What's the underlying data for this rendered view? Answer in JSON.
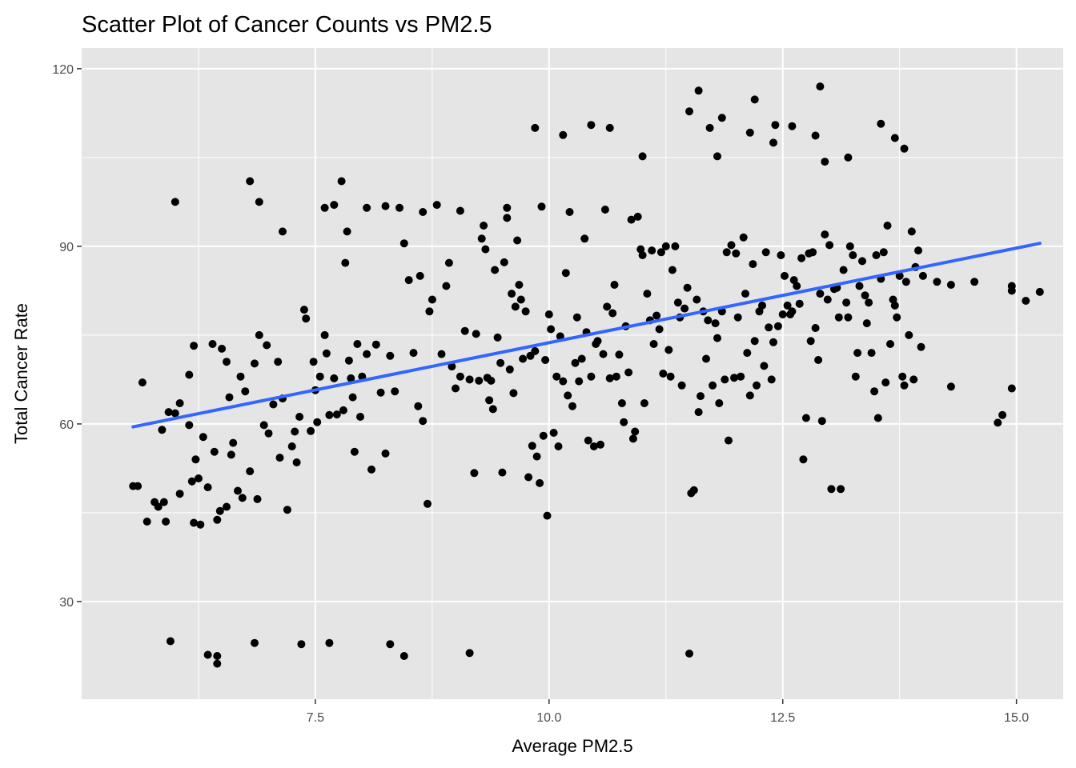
{
  "chart_data": {
    "type": "scatter",
    "title": "Scatter Plot of Cancer Counts vs PM2.5",
    "xlabel": "Average PM2.5",
    "ylabel": "Total Cancer Rate",
    "xlim": [
      5.0,
      15.5
    ],
    "ylim": [
      13.5,
      123.5
    ],
    "x_ticks": [
      7.5,
      10.0,
      12.5,
      15.0
    ],
    "x_tick_labels": [
      "7.5",
      "10.0",
      "12.5",
      "15.0"
    ],
    "x_minor_ticks": [
      6.25,
      8.75,
      11.25,
      13.75
    ],
    "y_ticks": [
      30,
      60,
      90,
      120
    ],
    "y_tick_labels": [
      "30",
      "60",
      "90",
      "120"
    ],
    "y_minor_ticks": [
      45,
      75,
      105
    ],
    "grid": true,
    "point_color": "#000000",
    "panel_background": "#e5e5e5",
    "grid_color": "#ffffff",
    "trend_line": {
      "method": "linear fit",
      "color": "#3366ff",
      "x": [
        5.55,
        15.25
      ],
      "y": [
        59.5,
        90.5
      ]
    },
    "points": [
      [
        5.55,
        49.5
      ],
      [
        5.65,
        67
      ],
      [
        5.7,
        43.5
      ],
      [
        5.78,
        46.8
      ],
      [
        5.82,
        46
      ],
      [
        5.86,
        59
      ],
      [
        5.9,
        43.5
      ],
      [
        5.93,
        62
      ],
      [
        5.88,
        46.8
      ],
      [
        6.05,
        48.2
      ],
      [
        6.15,
        68.3
      ],
      [
        6.18,
        50.3
      ],
      [
        6.2,
        43.3
      ],
      [
        6.22,
        54
      ],
      [
        6.25,
        50.8
      ],
      [
        6.27,
        43
      ],
      [
        6.3,
        57.8
      ],
      [
        6.35,
        49.3
      ],
      [
        6.42,
        55.3
      ],
      [
        6.45,
        43.8
      ],
      [
        6.48,
        45.3
      ],
      [
        6.5,
        72.7
      ],
      [
        6.55,
        46
      ],
      [
        6.58,
        64.5
      ],
      [
        6.62,
        56.8
      ],
      [
        6.6,
        54.8
      ],
      [
        6.67,
        48.7
      ],
      [
        6.72,
        47.5
      ],
      [
        6.75,
        65.5
      ],
      [
        6.8,
        52
      ],
      [
        6.85,
        70.2
      ],
      [
        6.88,
        47.3
      ],
      [
        6.9,
        97.5
      ],
      [
        6.95,
        59.8
      ],
      [
        6.98,
        73.3
      ],
      [
        7.0,
        58.4
      ],
      [
        7.05,
        63.3
      ],
      [
        7.1,
        70.5
      ],
      [
        7.12,
        54.3
      ],
      [
        7.15,
        64.3
      ],
      [
        7.2,
        45.5
      ],
      [
        7.25,
        56.2
      ],
      [
        7.28,
        58.7
      ],
      [
        7.3,
        53.5
      ],
      [
        7.33,
        61.2
      ],
      [
        7.38,
        79.3
      ],
      [
        7.4,
        77.8
      ],
      [
        7.45,
        58.8
      ],
      [
        7.48,
        70.5
      ],
      [
        7.5,
        65.7
      ],
      [
        7.52,
        60.3
      ],
      [
        7.55,
        68
      ],
      [
        7.6,
        75
      ],
      [
        7.62,
        71.9
      ],
      [
        7.65,
        61.5
      ],
      [
        7.7,
        67.7
      ],
      [
        7.73,
        61.6
      ],
      [
        7.78,
        101
      ],
      [
        7.8,
        62.3
      ],
      [
        7.82,
        87.2
      ],
      [
        7.84,
        92.5
      ],
      [
        7.86,
        70.7
      ],
      [
        7.88,
        67.7
      ],
      [
        7.9,
        64.5
      ],
      [
        7.92,
        55.3
      ],
      [
        7.95,
        73.5
      ],
      [
        7.98,
        61.2
      ],
      [
        8.0,
        68
      ],
      [
        8.05,
        71.8
      ],
      [
        8.1,
        52.3
      ],
      [
        8.15,
        73.4
      ],
      [
        8.2,
        65.3
      ],
      [
        8.25,
        55
      ],
      [
        8.3,
        71.5
      ],
      [
        8.35,
        65.5
      ],
      [
        8.4,
        96.5
      ],
      [
        8.45,
        90.5
      ],
      [
        8.5,
        84.3
      ],
      [
        8.55,
        72
      ],
      [
        8.6,
        63
      ],
      [
        8.62,
        85
      ],
      [
        8.65,
        60.5
      ],
      [
        8.7,
        46.5
      ],
      [
        8.72,
        79
      ],
      [
        8.75,
        81
      ],
      [
        8.8,
        97
      ],
      [
        8.85,
        71.8
      ],
      [
        8.9,
        83.3
      ],
      [
        8.93,
        87.2
      ],
      [
        8.96,
        69.7
      ],
      [
        9.0,
        66
      ],
      [
        9.05,
        68
      ],
      [
        9.1,
        75.7
      ],
      [
        9.15,
        67.5
      ],
      [
        9.2,
        51.7
      ],
      [
        9.22,
        75.2
      ],
      [
        9.25,
        67.3
      ],
      [
        9.28,
        91.3
      ],
      [
        9.3,
        93.5
      ],
      [
        9.32,
        89.5
      ],
      [
        9.34,
        67.8
      ],
      [
        9.36,
        64
      ],
      [
        9.38,
        67.3
      ],
      [
        9.4,
        62.5
      ],
      [
        9.42,
        86
      ],
      [
        9.45,
        74.6
      ],
      [
        9.48,
        70.3
      ],
      [
        9.5,
        51.8
      ],
      [
        9.52,
        87.3
      ],
      [
        9.55,
        96.5
      ],
      [
        9.58,
        69.2
      ],
      [
        9.6,
        82
      ],
      [
        9.62,
        65.2
      ],
      [
        9.64,
        79.8
      ],
      [
        9.66,
        91
      ],
      [
        9.68,
        83.5
      ],
      [
        9.7,
        81
      ],
      [
        9.72,
        71
      ],
      [
        9.75,
        79
      ],
      [
        9.78,
        51
      ],
      [
        9.8,
        71.5
      ],
      [
        9.82,
        56.3
      ],
      [
        9.85,
        72.3
      ],
      [
        9.87,
        54.5
      ],
      [
        9.9,
        50
      ],
      [
        9.92,
        96.7
      ],
      [
        9.94,
        58
      ],
      [
        9.96,
        70.8
      ],
      [
        9.98,
        44.5
      ],
      [
        10.0,
        78.5
      ],
      [
        10.02,
        76
      ],
      [
        10.05,
        58.5
      ],
      [
        10.08,
        68
      ],
      [
        10.1,
        56.2
      ],
      [
        10.12,
        74.8
      ],
      [
        10.15,
        67.2
      ],
      [
        10.18,
        85.5
      ],
      [
        10.2,
        64.8
      ],
      [
        10.22,
        95.8
      ],
      [
        10.25,
        63
      ],
      [
        10.28,
        70.3
      ],
      [
        10.3,
        78
      ],
      [
        10.32,
        67.2
      ],
      [
        10.35,
        71
      ],
      [
        10.38,
        91.3
      ],
      [
        10.4,
        75.5
      ],
      [
        10.42,
        57.2
      ],
      [
        10.45,
        68
      ],
      [
        10.48,
        56.2
      ],
      [
        10.5,
        73.5
      ],
      [
        10.52,
        74
      ],
      [
        10.55,
        56.5
      ],
      [
        10.58,
        71.8
      ],
      [
        10.6,
        96.2
      ],
      [
        10.62,
        79.8
      ],
      [
        10.65,
        67.7
      ],
      [
        10.68,
        78.7
      ],
      [
        10.7,
        83.5
      ],
      [
        10.72,
        68
      ],
      [
        10.75,
        71.7
      ],
      [
        10.78,
        63.5
      ],
      [
        10.8,
        60.3
      ],
      [
        10.82,
        76.5
      ],
      [
        10.85,
        68.7
      ],
      [
        10.88,
        94.5
      ],
      [
        10.9,
        57.5
      ],
      [
        10.92,
        58.7
      ],
      [
        10.95,
        95
      ],
      [
        10.98,
        89.5
      ],
      [
        11.0,
        88.5
      ],
      [
        11.02,
        63.5
      ],
      [
        11.05,
        82
      ],
      [
        11.08,
        77.5
      ],
      [
        11.1,
        89.3
      ],
      [
        11.12,
        73.5
      ],
      [
        11.15,
        78.3
      ],
      [
        11.18,
        76
      ],
      [
        11.2,
        89
      ],
      [
        11.22,
        68.5
      ],
      [
        11.25,
        90
      ],
      [
        11.28,
        72.5
      ],
      [
        11.3,
        68
      ],
      [
        11.32,
        86
      ],
      [
        11.35,
        90
      ],
      [
        11.38,
        80.5
      ],
      [
        11.4,
        78
      ],
      [
        11.42,
        66.5
      ],
      [
        11.45,
        79.5
      ],
      [
        11.48,
        83
      ],
      [
        11.5,
        21.2
      ],
      [
        11.52,
        48.3
      ],
      [
        11.55,
        48.8
      ],
      [
        11.58,
        81
      ],
      [
        11.6,
        62
      ],
      [
        11.62,
        64.7
      ],
      [
        11.65,
        79
      ],
      [
        11.68,
        71
      ],
      [
        11.7,
        77.5
      ],
      [
        11.72,
        110
      ],
      [
        11.75,
        66.5
      ],
      [
        11.78,
        77
      ],
      [
        11.8,
        74.5
      ],
      [
        11.82,
        63.5
      ],
      [
        11.85,
        79
      ],
      [
        11.88,
        67.5
      ],
      [
        11.9,
        89
      ],
      [
        11.92,
        57.2
      ],
      [
        11.95,
        90.2
      ],
      [
        11.98,
        67.8
      ],
      [
        12.0,
        88.8
      ],
      [
        12.02,
        78
      ],
      [
        12.05,
        68
      ],
      [
        12.08,
        91.5
      ],
      [
        12.1,
        82
      ],
      [
        12.12,
        72
      ],
      [
        12.15,
        64.8
      ],
      [
        12.18,
        87
      ],
      [
        12.2,
        74
      ],
      [
        12.22,
        66.5
      ],
      [
        12.25,
        79
      ],
      [
        12.28,
        80
      ],
      [
        12.3,
        69.8
      ],
      [
        12.32,
        89
      ],
      [
        12.35,
        76.3
      ],
      [
        12.38,
        67.5
      ],
      [
        12.4,
        73.8
      ],
      [
        12.42,
        110.5
      ],
      [
        12.45,
        76.5
      ],
      [
        12.48,
        88.5
      ],
      [
        12.5,
        78.5
      ],
      [
        12.52,
        85
      ],
      [
        12.55,
        80
      ],
      [
        12.58,
        78.5
      ],
      [
        12.6,
        79
      ],
      [
        12.62,
        84.3
      ],
      [
        12.65,
        83.3
      ],
      [
        12.68,
        80.3
      ],
      [
        12.7,
        88
      ],
      [
        12.72,
        54
      ],
      [
        12.75,
        61
      ],
      [
        12.78,
        88.8
      ],
      [
        12.8,
        74
      ],
      [
        12.82,
        89
      ],
      [
        12.85,
        76.2
      ],
      [
        12.88,
        70.8
      ],
      [
        12.9,
        82
      ],
      [
        12.92,
        60.5
      ],
      [
        12.95,
        92
      ],
      [
        12.98,
        81
      ],
      [
        13.0,
        90.2
      ],
      [
        13.02,
        49
      ],
      [
        13.05,
        82.8
      ],
      [
        13.08,
        83
      ],
      [
        13.1,
        78
      ],
      [
        13.12,
        49
      ],
      [
        13.15,
        86
      ],
      [
        13.18,
        80.5
      ],
      [
        13.2,
        78
      ],
      [
        13.22,
        90
      ],
      [
        13.25,
        88.5
      ],
      [
        13.28,
        68
      ],
      [
        13.3,
        72
      ],
      [
        13.32,
        83.3
      ],
      [
        13.35,
        87.5
      ],
      [
        13.38,
        81.7
      ],
      [
        13.4,
        77
      ],
      [
        13.42,
        80.5
      ],
      [
        13.45,
        72
      ],
      [
        13.48,
        65.5
      ],
      [
        13.5,
        88.5
      ],
      [
        13.52,
        61
      ],
      [
        13.55,
        84.5
      ],
      [
        13.58,
        89
      ],
      [
        13.6,
        67
      ],
      [
        13.62,
        93.5
      ],
      [
        13.65,
        73.5
      ],
      [
        13.68,
        81
      ],
      [
        13.7,
        80
      ],
      [
        13.72,
        78
      ],
      [
        13.75,
        85
      ],
      [
        13.78,
        68
      ],
      [
        13.8,
        66.5
      ],
      [
        13.82,
        84
      ],
      [
        13.85,
        75
      ],
      [
        13.88,
        92.5
      ],
      [
        13.9,
        67.5
      ],
      [
        13.92,
        86.5
      ],
      [
        13.95,
        89.3
      ],
      [
        13.98,
        73
      ],
      [
        14.0,
        85
      ],
      [
        5.95,
        23.3
      ],
      [
        6.35,
        21
      ],
      [
        6.45,
        19.5
      ],
      [
        6.45,
        20.8
      ],
      [
        6.85,
        23
      ],
      [
        7.35,
        22.8
      ],
      [
        7.65,
        23
      ],
      [
        8.3,
        22.8
      ],
      [
        8.45,
        20.8
      ],
      [
        9.15,
        21.3
      ],
      [
        6.0,
        97.5
      ],
      [
        6.8,
        101
      ],
      [
        7.15,
        92.5
      ],
      [
        7.6,
        96.5
      ],
      [
        7.7,
        97
      ],
      [
        8.05,
        96.5
      ],
      [
        8.25,
        96.8
      ],
      [
        8.65,
        95.8
      ],
      [
        9.05,
        96
      ],
      [
        9.55,
        94.8
      ],
      [
        9.85,
        110
      ],
      [
        10.15,
        108.8
      ],
      [
        10.45,
        110.5
      ],
      [
        10.65,
        110
      ],
      [
        11.0,
        105.2
      ],
      [
        11.5,
        112.8
      ],
      [
        11.6,
        116.3
      ],
      [
        11.85,
        111.7
      ],
      [
        11.8,
        105.2
      ],
      [
        12.15,
        109.2
      ],
      [
        12.2,
        114.8
      ],
      [
        12.4,
        107.5
      ],
      [
        12.6,
        110.3
      ],
      [
        12.85,
        108.7
      ],
      [
        12.9,
        117
      ],
      [
        12.95,
        104.3
      ],
      [
        13.2,
        105
      ],
      [
        13.55,
        110.7
      ],
      [
        13.7,
        108.3
      ],
      [
        13.8,
        106.5
      ],
      [
        14.15,
        84
      ],
      [
        14.3,
        83.5
      ],
      [
        14.3,
        66.3
      ],
      [
        14.55,
        84
      ],
      [
        14.8,
        60.2
      ],
      [
        14.85,
        61.5
      ],
      [
        14.95,
        83.3
      ],
      [
        14.95,
        82.5
      ],
      [
        14.95,
        66
      ],
      [
        15.1,
        80.8
      ],
      [
        15.25,
        82.3
      ],
      [
        5.6,
        49.5
      ],
      [
        6.0,
        61.8
      ],
      [
        6.05,
        63.5
      ],
      [
        6.15,
        59.8
      ],
      [
        6.2,
        73.2
      ],
      [
        6.4,
        73.5
      ],
      [
        6.55,
        70.5
      ],
      [
        6.7,
        68
      ],
      [
        6.9,
        75
      ]
    ]
  }
}
